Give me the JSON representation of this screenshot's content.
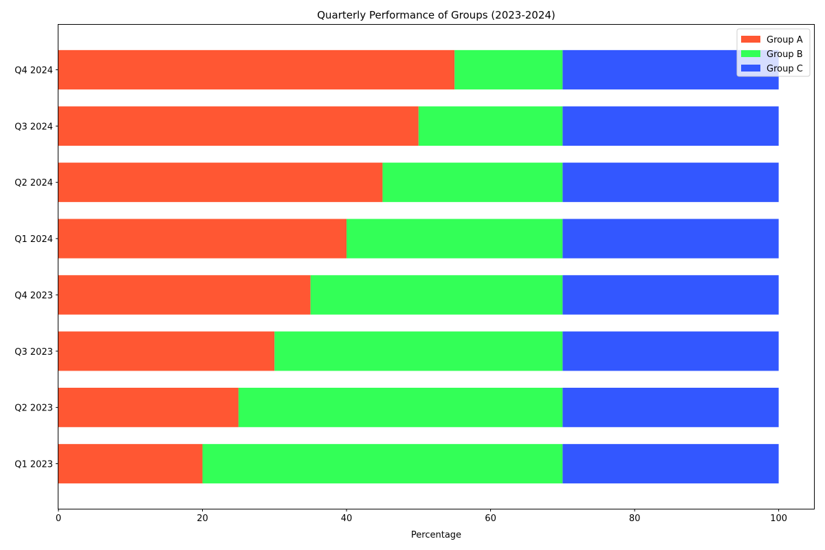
{
  "chart_data": {
    "type": "bar",
    "orientation": "horizontal",
    "stacked": true,
    "title": "Quarterly Performance of Groups (2023-2024)",
    "xlabel": "Percentage",
    "ylabel": "",
    "xlim": [
      0,
      105
    ],
    "xticks": [
      0,
      20,
      40,
      60,
      80,
      100
    ],
    "categories": [
      "Q1 2023",
      "Q2 2023",
      "Q3 2023",
      "Q4 2023",
      "Q1 2024",
      "Q2 2024",
      "Q3 2024",
      "Q4 2024"
    ],
    "series": [
      {
        "name": "Group A",
        "color": "#ff5733",
        "values": [
          20,
          25,
          30,
          35,
          40,
          45,
          50,
          55
        ]
      },
      {
        "name": "Group B",
        "color": "#33ff57",
        "values": [
          50,
          45,
          40,
          35,
          30,
          25,
          20,
          15
        ]
      },
      {
        "name": "Group C",
        "color": "#3357ff",
        "values": [
          30,
          30,
          30,
          30,
          30,
          30,
          30,
          30
        ]
      }
    ],
    "grid": false,
    "legend_position": "top-right"
  }
}
